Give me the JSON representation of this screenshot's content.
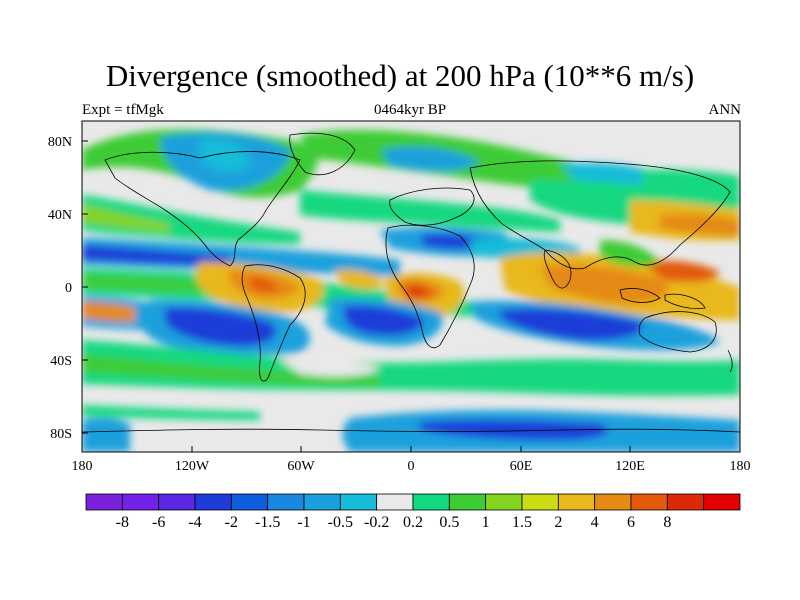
{
  "title": "Divergence (smoothed) at 200 hPa (10**6 m/s)",
  "left_label": "Expt = tfMgk",
  "center_label": "0464kyr BP",
  "right_label": "ANN",
  "lat_ticks": [
    "80N",
    "40N",
    "0",
    "40S",
    "80S"
  ],
  "lon_ticks": [
    "180",
    "120W",
    "60W",
    "0",
    "60E",
    "120E",
    "180"
  ],
  "colorbar": {
    "colors": [
      "#7a21dc",
      "#7421e8",
      "#5b28e4",
      "#1e3cd8",
      "#0d5ddc",
      "#1b88df",
      "#1aa0dc",
      "#19bcd8",
      "#e9e9e9",
      "#12d880",
      "#3ccc34",
      "#84d422",
      "#c9dc14",
      "#e8b81c",
      "#e58a12",
      "#e25a0c",
      "#dc2a08",
      "#e20000"
    ],
    "labels": [
      "-8",
      "-6",
      "-4",
      "-2",
      "-1.5",
      "-1",
      "-0.5",
      "-0.2",
      "0.2",
      "0.5",
      "1",
      "1.5",
      "2",
      "4",
      "6",
      "8"
    ]
  },
  "palette": {
    "background": "#e9e9e9",
    "strong_neg": "#1e3cd8",
    "neg": "#1aa0dc",
    "weak_neg": "#19bcd8",
    "weak_pos": "#12d880",
    "pos": "#3ccc34",
    "strong_pos": "#e8b81c",
    "very_strong_pos": "#e25a0c"
  }
}
